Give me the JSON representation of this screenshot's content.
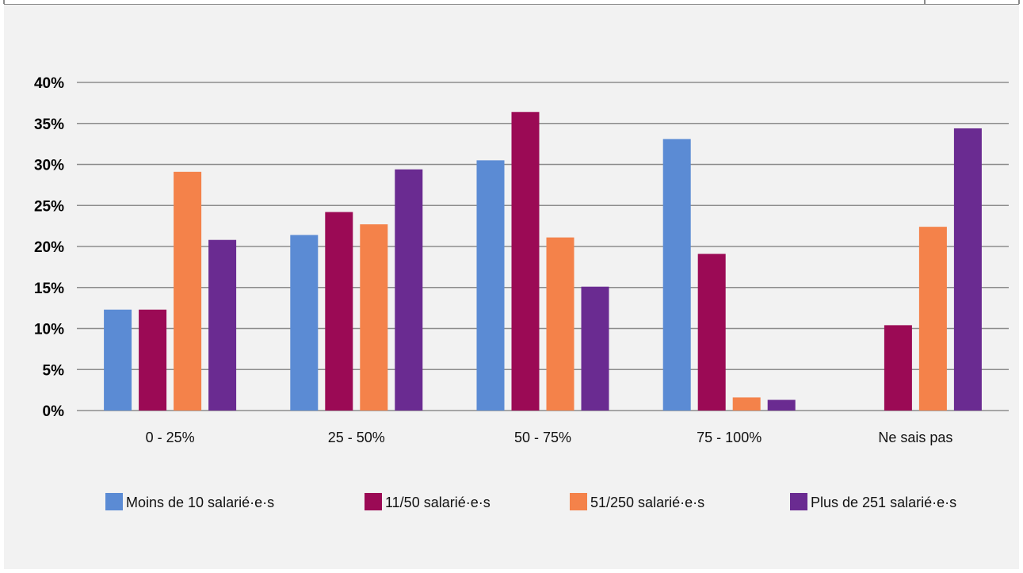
{
  "chart_data": {
    "type": "bar",
    "categories": [
      "0 - 25%",
      "25 - 50%",
      "50 - 75%",
      "75 - 100%",
      "Ne sais pas"
    ],
    "series": [
      {
        "name": "Moins de 10 salarié·e·s",
        "color": "#5b8bd4",
        "values": [
          12.3,
          21.4,
          30.5,
          33.1,
          0
        ]
      },
      {
        "name": "11/50 salarié·e·s",
        "color": "#9b0a55",
        "values": [
          12.3,
          24.2,
          36.4,
          19.1,
          10.4
        ]
      },
      {
        "name": "51/250 salarié·e·s",
        "color": "#f4824a",
        "values": [
          29.1,
          22.7,
          21.1,
          1.6,
          22.4
        ]
      },
      {
        "name": "Plus de 251 salarié·e·s",
        "color": "#6a2b91",
        "values": [
          20.8,
          29.4,
          15.1,
          1.3,
          34.4
        ]
      }
    ],
    "yticks": [
      "0%",
      "5%",
      "10%",
      "15%",
      "20%",
      "25%",
      "30%",
      "35%",
      "40%"
    ],
    "ylim": [
      0,
      40
    ],
    "grid": true,
    "legend_position": "bottom"
  }
}
